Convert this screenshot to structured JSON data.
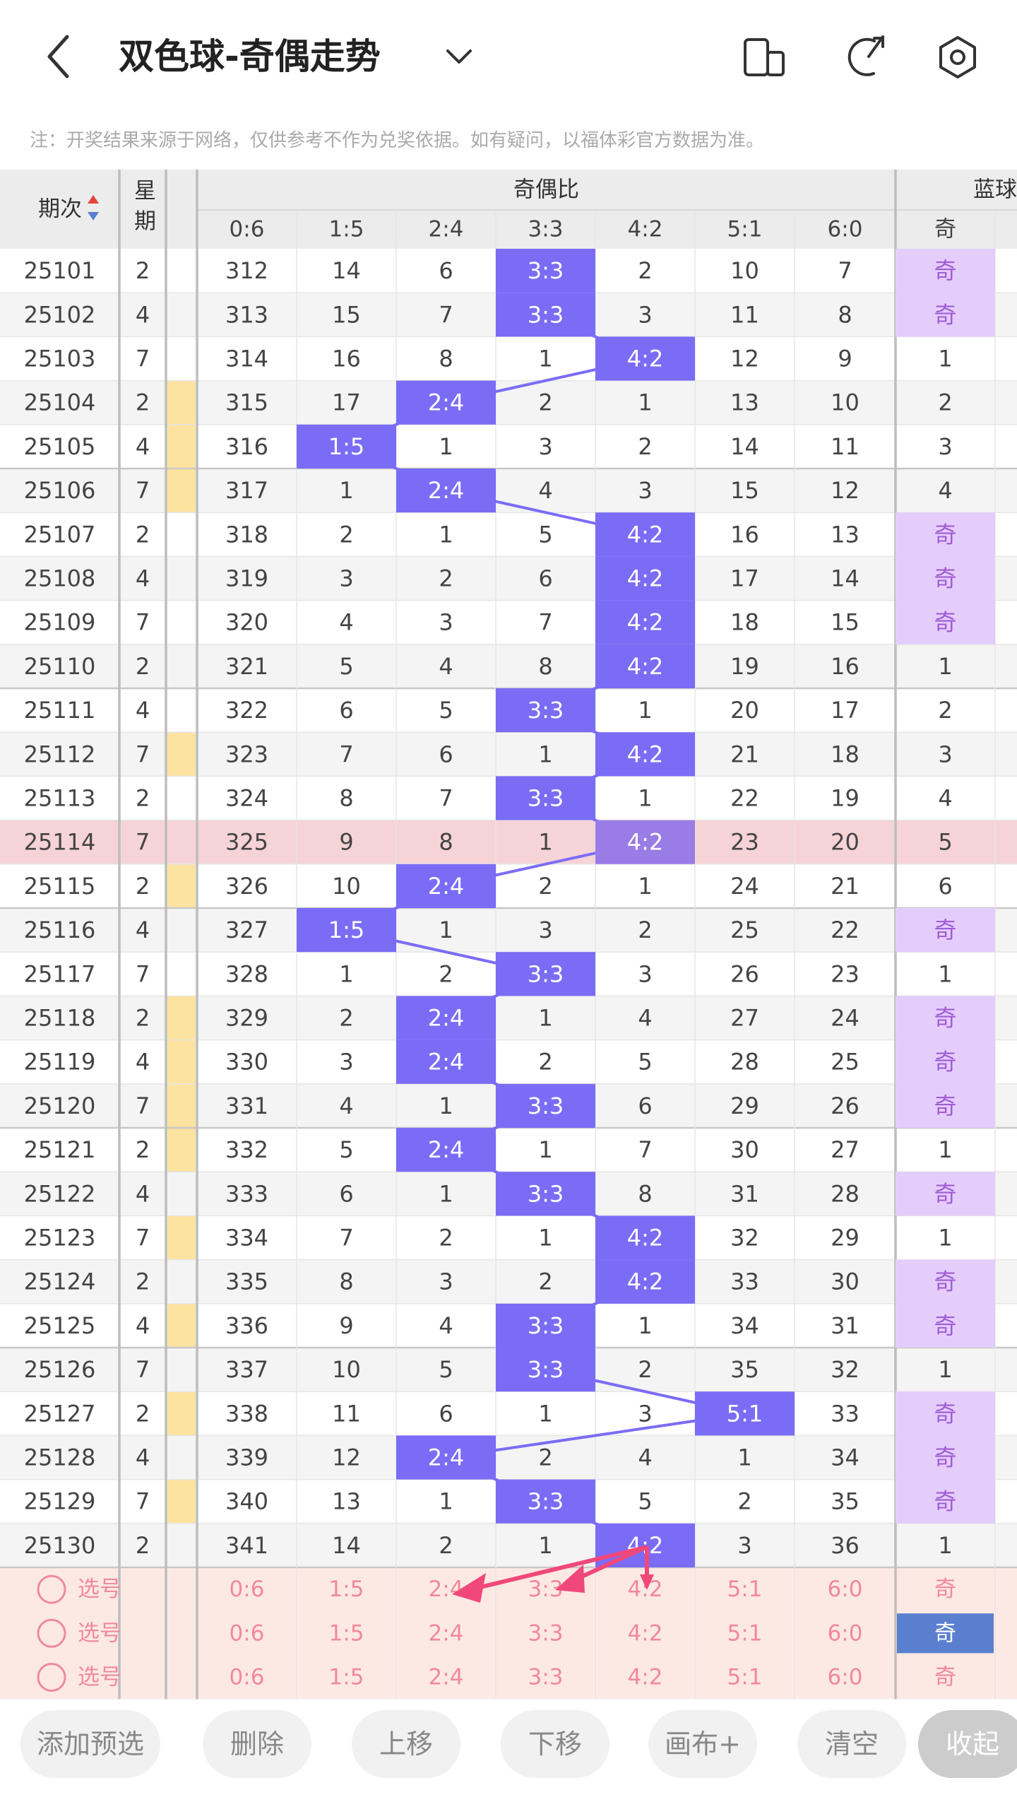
{
  "header": {
    "title": "双色球-奇偶走势"
  },
  "notice": "注：开奖结果来源于网络，仅供参考不作为兑奖依据。如有疑问，以福体彩官方数据为准。",
  "table": {
    "headers": {
      "period": "期次",
      "weekday": "星期",
      "ratio_group": "奇偶比",
      "blue_group": "蓝球",
      "ratios": [
        "0:6",
        "1:5",
        "2:4",
        "3:3",
        "4:2",
        "5:1",
        "6:0"
      ],
      "blue": "奇"
    },
    "rows": [
      {
        "cells": [
          25101,
          2,
          312,
          14,
          6,
          "3:3",
          2,
          10,
          7,
          "奇"
        ]
      },
      {
        "cells": [
          25102,
          4,
          313,
          15,
          7,
          "3:3",
          3,
          11,
          8,
          "奇"
        ]
      },
      {
        "cells": [
          25103,
          7,
          314,
          16,
          8,
          1,
          "4:2",
          12,
          9,
          1
        ]
      },
      {
        "cells": [
          25104,
          2,
          315,
          17,
          "2:4",
          2,
          1,
          13,
          10,
          2
        ],
        "stripe": true
      },
      {
        "cells": [
          25105,
          4,
          316,
          "1:5",
          1,
          3,
          2,
          14,
          11,
          3
        ],
        "stripe": true
      },
      {
        "cells": [
          25106,
          7,
          317,
          1,
          "2:4",
          4,
          3,
          15,
          12,
          4
        ],
        "stripe": true
      },
      {
        "cells": [
          25107,
          2,
          318,
          2,
          1,
          5,
          "4:2",
          16,
          13,
          "奇"
        ]
      },
      {
        "cells": [
          25108,
          4,
          319,
          3,
          2,
          6,
          "4:2",
          17,
          14,
          "奇"
        ]
      },
      {
        "cells": [
          25109,
          7,
          320,
          4,
          3,
          7,
          "4:2",
          18,
          15,
          "奇"
        ]
      },
      {
        "cells": [
          25110,
          2,
          321,
          5,
          4,
          8,
          "4:2",
          19,
          16,
          1
        ]
      },
      {
        "cells": [
          25111,
          4,
          322,
          6,
          5,
          "3:3",
          1,
          20,
          17,
          2
        ]
      },
      {
        "cells": [
          25112,
          7,
          323,
          7,
          6,
          1,
          "4:2",
          21,
          18,
          3
        ],
        "stripe": true
      },
      {
        "cells": [
          25113,
          2,
          324,
          8,
          7,
          "3:3",
          1,
          22,
          19,
          4
        ]
      },
      {
        "cells": [
          25114,
          7,
          325,
          9,
          8,
          1,
          "4:2",
          23,
          20,
          5
        ],
        "selected": true
      },
      {
        "cells": [
          25115,
          2,
          326,
          10,
          "2:4",
          2,
          1,
          24,
          21,
          6
        ],
        "stripe": true
      },
      {
        "cells": [
          25116,
          4,
          327,
          "1:5",
          1,
          3,
          2,
          25,
          22,
          "奇"
        ]
      },
      {
        "cells": [
          25117,
          7,
          328,
          1,
          2,
          "3:3",
          3,
          26,
          23,
          1
        ]
      },
      {
        "cells": [
          25118,
          2,
          329,
          2,
          "2:4",
          1,
          4,
          27,
          24,
          "奇"
        ],
        "stripe": true
      },
      {
        "cells": [
          25119,
          4,
          330,
          3,
          "2:4",
          2,
          5,
          28,
          25,
          "奇"
        ],
        "stripe": true
      },
      {
        "cells": [
          25120,
          7,
          331,
          4,
          1,
          "3:3",
          6,
          29,
          26,
          "奇"
        ],
        "stripe": true
      },
      {
        "cells": [
          25121,
          2,
          332,
          5,
          "2:4",
          1,
          7,
          30,
          27,
          1
        ],
        "stripe": true
      },
      {
        "cells": [
          25122,
          4,
          333,
          6,
          1,
          "3:3",
          8,
          31,
          28,
          "奇"
        ]
      },
      {
        "cells": [
          25123,
          7,
          334,
          7,
          2,
          1,
          "4:2",
          32,
          29,
          1
        ],
        "stripe": true
      },
      {
        "cells": [
          25124,
          2,
          335,
          8,
          3,
          2,
          "4:2",
          33,
          30,
          "奇"
        ]
      },
      {
        "cells": [
          25125,
          4,
          336,
          9,
          4,
          "3:3",
          1,
          34,
          31,
          "奇"
        ],
        "stripe": true
      },
      {
        "cells": [
          25126,
          7,
          337,
          10,
          5,
          "3:3",
          2,
          35,
          32,
          1
        ]
      },
      {
        "cells": [
          25127,
          2,
          338,
          11,
          6,
          1,
          3,
          "5:1",
          33,
          "奇"
        ],
        "stripe": true
      },
      {
        "cells": [
          25128,
          4,
          339,
          12,
          "2:4",
          2,
          4,
          1,
          34,
          "奇"
        ]
      },
      {
        "cells": [
          25129,
          7,
          340,
          13,
          1,
          "3:3",
          5,
          2,
          35,
          "奇"
        ],
        "stripe": true
      },
      {
        "cells": [
          25130,
          2,
          341,
          14,
          2,
          1,
          "4:2",
          3,
          36,
          1
        ]
      }
    ],
    "pick_rows": [
      {
        "label": "选号",
        "cells": [
          "0:6",
          "1:5",
          "2:4",
          "3:3",
          "4:2",
          "5:1",
          "6:0",
          "奇"
        ]
      },
      {
        "label": "选号",
        "cells": [
          "0:6",
          "1:5",
          "2:4",
          "3:3",
          "4:2",
          "5:1",
          "6:0",
          "奇"
        ],
        "blue_selected": true
      },
      {
        "label": "选号",
        "cells": [
          "0:6",
          "1:5",
          "2:4",
          "3:3",
          "4:2",
          "5:1",
          "6:0",
          "奇"
        ]
      }
    ]
  },
  "buttons": [
    "添加预选",
    "删除",
    "上移",
    "下移",
    "画布+",
    "清空",
    "收起"
  ]
}
